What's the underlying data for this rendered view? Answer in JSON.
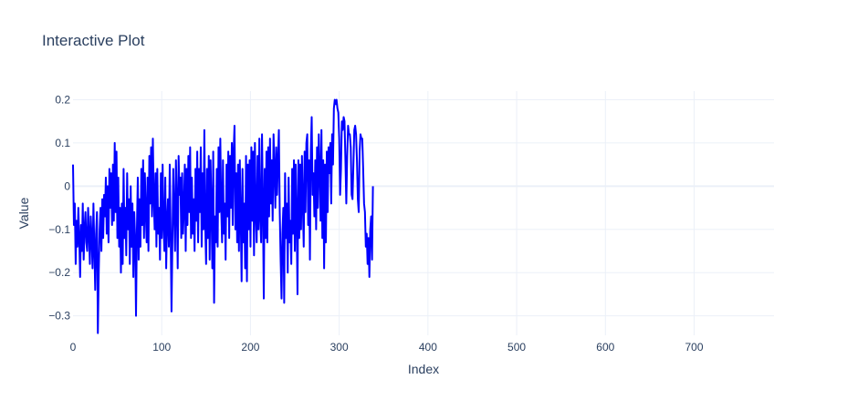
{
  "chart_data": {
    "type": "line",
    "title": "Interactive Plot",
    "xlabel": "Index",
    "ylabel": "Value",
    "xlim": [
      0,
      790
    ],
    "ylim": [
      -0.345,
      0.22
    ],
    "x_ticks": [
      0,
      100,
      200,
      300,
      400,
      500,
      600,
      700
    ],
    "x_tick_labels": [
      "0",
      "100",
      "200",
      "300",
      "400",
      "500",
      "600",
      "700"
    ],
    "y_ticks": [
      -0.3,
      -0.2,
      -0.1,
      0,
      0.1,
      0.2
    ],
    "y_tick_labels": [
      "−0.3",
      "−0.2",
      "−0.1",
      "0",
      "0.1",
      "0.2"
    ],
    "grid": true,
    "legend": "none",
    "line_color": "#0000ff",
    "series": [
      {
        "x_start": 0,
        "x_step": 1,
        "values": [
          0.05,
          -0.09,
          -0.04,
          -0.18,
          -0.08,
          -0.14,
          -0.05,
          -0.12,
          -0.21,
          -0.09,
          -0.15,
          -0.04,
          -0.17,
          -0.1,
          -0.06,
          -0.13,
          -0.15,
          -0.05,
          -0.11,
          -0.18,
          -0.07,
          -0.12,
          -0.19,
          -0.04,
          -0.14,
          -0.24,
          -0.11,
          -0.06,
          -0.34,
          -0.2,
          -0.1,
          -0.05,
          -0.15,
          -0.03,
          -0.12,
          -0.02,
          -0.07,
          0.02,
          -0.11,
          0.0,
          -0.13,
          0.04,
          -0.05,
          0.03,
          -0.09,
          0.05,
          -0.08,
          0.1,
          -0.06,
          0.08,
          -0.12,
          0.02,
          -0.14,
          -0.05,
          -0.2,
          -0.04,
          -0.18,
          0.04,
          -0.12,
          -0.05,
          -0.16,
          0.03,
          -0.1,
          -0.03,
          -0.18,
          0.0,
          -0.14,
          -0.04,
          -0.21,
          -0.06,
          -0.12,
          -0.3,
          -0.1,
          0.02,
          -0.17,
          -0.03,
          -0.14,
          0.04,
          -0.09,
          0.06,
          -0.12,
          0.03,
          -0.06,
          -0.13,
          0.02,
          -0.15,
          0.07,
          -0.04,
          0.09,
          -0.07,
          0.11,
          -0.03,
          -0.1,
          0.03,
          -0.14,
          0.04,
          -0.11,
          -0.05,
          -0.17,
          0.03,
          -0.12,
          0.05,
          -0.09,
          -0.15,
          0.02,
          -0.19,
          -0.08,
          -0.03,
          -0.14,
          0.05,
          -0.1,
          -0.29,
          -0.13,
          0.04,
          -0.06,
          -0.15,
          0.06,
          -0.04,
          -0.19,
          0.07,
          -0.02,
          0.02,
          -0.12,
          0.03,
          -0.11,
          -0.05,
          0.05,
          -0.15,
          0.04,
          -0.09,
          0.07,
          -0.06,
          0.09,
          -0.12,
          0.02,
          -0.11,
          -0.03,
          -0.15,
          0.04,
          -0.08,
          0.08,
          -0.13,
          0.04,
          -0.06,
          0.09,
          -0.14,
          0.03,
          -0.1,
          0.13,
          -0.09,
          -0.18,
          0.04,
          -0.12,
          0.07,
          -0.17,
          0.06,
          -0.05,
          -0.19,
          0.08,
          -0.27,
          -0.07,
          -0.13,
          0.04,
          -0.14,
          0.09,
          -0.06,
          0.11,
          -0.05,
          -0.13,
          0.06,
          -0.11,
          -0.04,
          -0.17,
          0.05,
          -0.07,
          0.08,
          -0.12,
          0.07,
          -0.05,
          0.1,
          -0.09,
          0.08,
          0.14,
          -0.1,
          0.03,
          -0.13,
          0.05,
          -0.15,
          0.06,
          -0.07,
          -0.22,
          0.04,
          -0.13,
          -0.04,
          -0.19,
          0.07,
          -0.22,
          0.05,
          -0.1,
          0.06,
          -0.14,
          0.09,
          -0.08,
          0.08,
          -0.16,
          0.1,
          -0.06,
          -0.13,
          0.07,
          -0.1,
          0.11,
          -0.07,
          -0.13,
          0.12,
          -0.04,
          -0.26,
          0.04,
          -0.12,
          0.08,
          -0.13,
          0.09,
          -0.07,
          0.11,
          -0.04,
          0.06,
          -0.08,
          0.12,
          0.04,
          -0.05,
          0.09,
          -0.02,
          0.06,
          0.13,
          -0.06,
          -0.17,
          -0.26,
          -0.11,
          -0.05,
          -0.27,
          0.03,
          -0.12,
          -0.04,
          -0.2,
          0.02,
          -0.13,
          -0.08,
          -0.18,
          0.04,
          -0.11,
          0.06,
          -0.15,
          0.05,
          -0.07,
          -0.25,
          0.06,
          -0.12,
          0.05,
          -0.1,
          0.07,
          -0.04,
          -0.14,
          0.08,
          -0.06,
          0.1,
          0.12,
          -0.09,
          0.06,
          -0.17,
          0.08,
          0.16,
          -0.02,
          0.03,
          -0.07,
          0.06,
          -0.1,
          0.09,
          -0.05,
          0.12,
          0.04,
          -0.08,
          0.13,
          -0.12,
          0.06,
          -0.19,
          0.05,
          -0.13,
          0.08,
          -0.06,
          0.09,
          0.03,
          0.1,
          -0.04,
          0.12,
          0.05,
          0.18,
          0.2,
          0.19,
          0.2,
          0.18,
          0.17,
          0.11,
          -0.02,
          0.04,
          0.15,
          0.13,
          0.16,
          0.15,
          0.06,
          -0.04,
          0.07,
          0.14,
          0.12,
          0.12,
          0.09,
          -0.02,
          -0.03,
          0.05,
          0.13,
          0.14,
          0.12,
          0.06,
          -0.03,
          -0.06,
          0.08,
          0.12,
          0.11,
          0.11,
          0.04,
          -0.04,
          -0.06,
          -0.14,
          -0.11,
          -0.18,
          -0.12,
          -0.21,
          -0.1,
          -0.07,
          -0.17,
          0.0
        ]
      }
    ]
  }
}
